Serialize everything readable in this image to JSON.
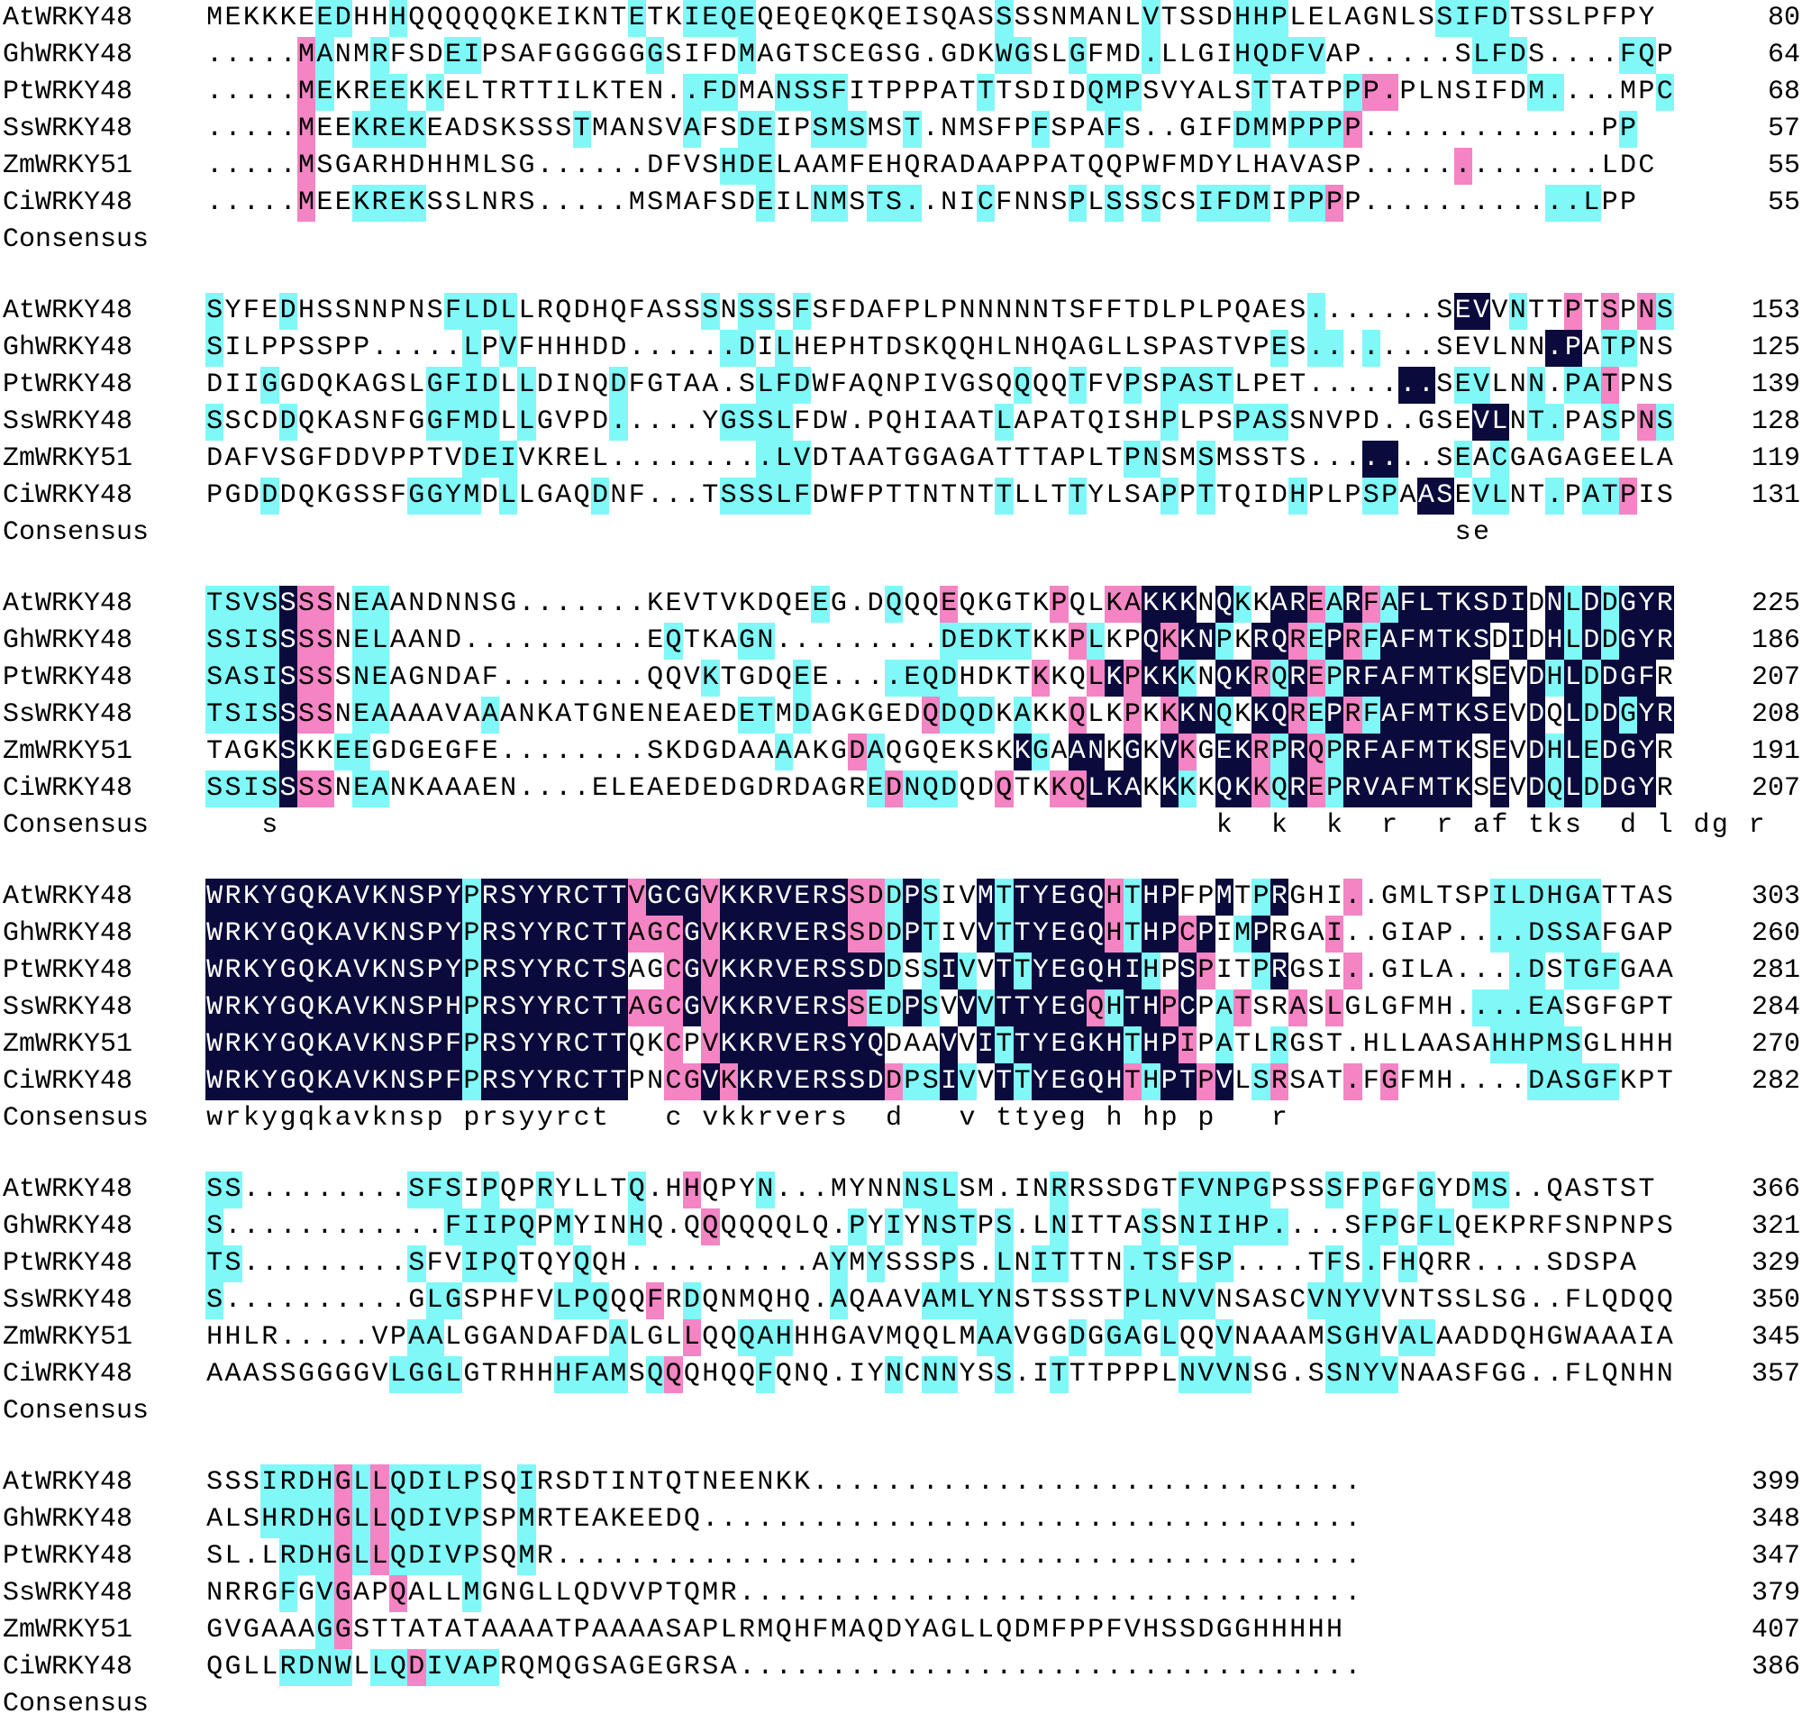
{
  "consensus_label": "Consensus",
  "highlight_colors": {
    "pink": "#f484c4",
    "cyan": "#80f8f8",
    "navy": "#0a0a3c"
  },
  "blocks": [
    {
      "rows": [
        {
          "name": "AtWRKY48",
          "seq": "MEKKKEEDHHHQQQQQQKEIKNTETKIEQEQEQEQKQEISQASSSSNMANLVTSSDHHPLELAGNLSSIFDTSSLPFPY",
          "hl": "......11..1............1..1111.............1.......1....111........1111........1",
          "num": "80"
        },
        {
          "name": "GhWRKY48",
          "seq": ".....MANMRFSDEIPSAFGGGGGGSIFDMAGTSCEGSG.GDKWGSLGFMD.LLGIHQDFVAP.....SLFDS....FQP",
          "hl": ".....21..1...11.........1....1.............11..1...1....11111........111.....11",
          "num": "64"
        },
        {
          "name": "PtWRKY48",
          "seq": ".....MEKREEKKELTRTTILKTEN..FDMANSSFITPPPATTTSDIDQMPSVYALSTTATPPP.PLNSIFDM....MPC",
          "hl": ".....21..11.1.............111..1111.......1.....111......1....122.......11.....1",
          "num": "68"
        },
        {
          "name": "SsWRKY48",
          "seq": ".....MEEKREKEADSKSSSTMANSVAFSDEIPSMSMST.NMSFPFSPAFS..GIFDMMPPPP.............PP",
          "hl": ".....2..1111........1.....1..11..111..1......1...1......11.1112..............11",
          "num": "57"
        },
        {
          "name": "ZmWRKY51",
          "seq": ".....MSGARHDHHMLSG......DFVSHDELAAMFEHQRADAAPPATQQPWFMDYLHAVASP.............LDC",
          "hl": ".....2......................111.....................................2..............",
          "num": "55"
        },
        {
          "name": "CiWRKY48",
          "seq": ".....MEEKREKSSLNRS.....MSMAFSDEILNMSTS..NICFNNSPLSSSCSIFDMIPPPP............LPP",
          "hl": ".....2..1111..................1..11.111...1....1.1.1..1111.112...........111",
          "num": "55"
        }
      ],
      "consensus": ""
    },
    {
      "rows": [
        {
          "name": "AtWRKY48",
          "seq": "SYFEDHSSNNPNSFLDLLRQDHQFASSSNSSSFSFDAFPLPNNNNNTSFFTDLPLPQAES.......SEVVNTTPTSPNS",
          "hl": "1...1........1111..........1.11.1...........................1.......33.1..2.2.212",
          "num": "153"
        },
        {
          "name": "GhWRKY48",
          "seq": "SILPPSSPP.....LPVFHHHDD......DILHEPHTDSKQQHLNHQAGLLSPASTVPES.......SEVLNN.PATPNS",
          "hl": "1.............1.1...........11.1..........................1.11.1.........33.11..1.112",
          "num": "125"
        },
        {
          "name": "PtWRKY48",
          "seq": "DIIGGDQKAGSLGFIDLLDINQDFGTAA.SLFDWFAQNPIVGSQQQQTFVPSPASTLPET.......SEVLNN.PATPNS",
          "hl": "...1........1111.1....1.......111...........1..1..1.1111.........33.11..1.112",
          "num": "139"
        },
        {
          "name": "SsWRKY48",
          "seq": "SSCDDQKASNFGGFMDLLGVPD.....YGSSLFDW.PQHIAATLAPATQISHPLPSPASSNVPD..GSEVLNT.PASPNS",
          "hl": "1...1.......1111.1....1.....1111...........1........1...111..........33.11..1.212",
          "num": "128"
        },
        {
          "name": "ZmWRKY51",
          "seq": "DAFVSGFDDVPPTVDEIVKREL.........LVDTAATGGAGATTTAPLTPNSMSMSSTS.......SEACGAGAGEELA",
          "hl": "..............111.............111.................11..1........33...1.1.....",
          "num": "119"
        },
        {
          "name": "CiWRKY48",
          "seq": "PGDDDQKGSSFGGYMDLLGAQDNF...TSSSLFDWFPTTNTNTTLLTTYLSAPPTTQIDHPLPSPAASEVLNT.PATPIS",
          "hl": "...1.......1111.1....1......11111..........1...1....1.1....1...11.33.11..1.112",
          "num": "131"
        }
      ],
      "consensus": "                                                                    se           "
    },
    {
      "rows": [
        {
          "name": "AtWRKY48",
          "seq": "TSVSSSSNEAANDNNSG.......KEVTVKDQEEG.DQQQEQKGTKPQLKAKKKNQKKAREARFAFLTKSDIDNLDDGYR",
          "hl": "1111322.11.......................1...1..2.....2..22333.31.33213213333333.3131333",
          "num": "225"
        },
        {
          "name": "GhWRKY48",
          "seq": "SSISSSSNELAAND..........EQTKAGN.........DEDKTKKPLKPQKKNPKRQREPRFAFMTKSDIDHLDDGYR",
          "hl": "1111322.11...............1...11.........11111..21..32331.3321321333333.3.3131333",
          "num": "186"
        },
        {
          "name": "PtWRKY48",
          "seq": "SASISSSSNEAGNDAF........QQVKTGDQEE....EQDHDKTKKQLKPKKKNQKRQREPRFAFMTKSEVDHLDDGFR",
          "hl": "1111322.11.................1....1....1111....2..232331.33213213333333.3.3131333",
          "num": "207"
        },
        {
          "name": "SsWRKY48",
          "seq": "TSISSSSNEAAAAVAAANKATGNENEAEDETMDAGKGEDQDQDKAKKQLKPKKKNQKKQREPRFAFMTKSEVDQLDDGYR",
          "hl": "1111322.11.....1.............11.1......2111.1..2..2.2331.33213213333333.3.3131333",
          "num": "208"
        },
        {
          "name": "ZmWRKY51",
          "seq": "TAGKSKKEEGDGEGFE........SKDGDAAAAKGDAQGQEKSKKGAANKGKVKGEKRPRQPRFAFMTKSEVDHLEDGYR",
          "hl": "....3..11......................1...21.......31.33.3.32.33213213333333.3.3131333",
          "num": "191"
        },
        {
          "name": "CiWRKY48",
          "seq": "SSISSSSNEANKAAAEN....ELEAEDEDGDRDAGREDNQDQDQTKKQLKAKKKKQKKQREPRVAFMTKSEVDQLDDGYR",
          "hl": "1111322.11..........................12111..2..22333.31.33213213333333.3.3131333",
          "num": "207"
        }
      ],
      "consensus": "   s                                                   k  k  k  r  r af tks  d l dg r"
    },
    {
      "rows": [
        {
          "name": "AtWRKY48",
          "seq": "WRKYGQKAVKNSPYPRSYYRCTTVGCGVKKRVERSSDDPSIVMTTYEGQHTHPFPMTPRGHI..GMLTSPILDHGATTAS",
          "hl": "3333333333333313333333323332333333322131..31333332133..3.13...2.......111111",
          "num": "303"
        },
        {
          "name": "GhWRKY48",
          "seq": "WRKYGQKAVKNSPYPRSYYRCTTAGCGVKKRVERSSDDPTIVVTTYEGQHTHPCPIMPRGAI..GIAP....DSSAFGAP",
          "hl": "3333333333333313333333322232333333322131..3133333213323.13...2........111111",
          "num": "260"
        },
        {
          "name": "PtWRKY48",
          "seq": "WRKYGQKAVKNSPYPRSYYRCTSAGCGVKKRVERSSDDSSIVVTTYEGQHIHPSPITPRGSI..GILA....DSTGFGAA",
          "hl": "33333333333333133333333..2323333333331.131.313333331.32..13...2........11.111",
          "num": "281"
        },
        {
          "name": "SsWRKY48",
          "seq": "WRKYGQKAVKNSPHPRSYYRCTTAGCGVKKRVERSSEDPSVVVTTYEGQHTHPCPATSRASLGLGFMH....EASGFGPT",
          "hl": "3333333333333313333333322232333333321131.3133333213323.12..2.2.......11111",
          "num": "284"
        },
        {
          "name": "ZmWRKY51",
          "seq": "WRKYGQKAVKNSPFPRSYYRCTTQKCPVKKRVERSYQDAAVVITTYEGKHTHPIPATLRGST.HLLAASAHHPMSGLHHH",
          "hl": "33333333333333133333333..2.2333333333...3.313333331332.1..1...........11111",
          "num": "270"
        },
        {
          "name": "CiWRKY48",
          "seq": "WRKYGQKAVKNSPFPRSYYRCTTPNCGVKKRVERSSDDPSIVVTTYEGQHTHPTPVLSRSAT.FGFMH....DASGFKPT",
          "hl": "33333333333333133333333..22323333333321131.3133333213323.12...2.2.......11111",
          "num": "282"
        }
      ],
      "consensus": "wrkygqkavknsp prsyyrct   c vkkrvers  d   v ttyeg h hp p   r"
    },
    {
      "rows": [
        {
          "name": "AtWRKY48",
          "seq": "SS.........SFSIPQPRYLLTQ.HHQPYN...MYNNNSLSM.INRRSSDGTFVNPGPSSSFPGFGYDMS..QASTST",
          "hl": "11.........111.1..1....1..2...1.......111.....1......11111...1.1..1..11.....",
          "num": "366"
        },
        {
          "name": "GhWRKY48",
          "seq": "S............FIIPQPMYINHQ.QQQQQQLQ.PYIYNSTPS.LNITTASSNIIHP....SFPGFLQEKPRFSNPNPS",
          "hl": "1............11111.1...1...2.......1.1.111.1..1....1.111111....11.11.............",
          "num": "321"
        },
        {
          "name": "PtWRKY48",
          "seq": "TS.........SFVIPQTQYQQH..........AYMYSSSPS.LNITTTN.TSFSP....TFS.FHQRR....SDSPA",
          "hl": "11.........1..111...1.............1.1...1..1.11...111.11.....1.1.1...............",
          "num": "329"
        },
        {
          "name": "SsWRKY48",
          "seq": "S..........GLGSPHFVLPQQQFRDQNMQHQ.AQAAVAMLYNSTSSSTPLNVVNSASCVNYVVNTSSLSG..FLQDQQ",
          "hl": "1...........11.....111..2.1.......1....11111......11111.....1111...........",
          "num": "350"
        },
        {
          "name": "ZmWRKY51",
          "seq": "HHLR.....VPAALGGANDAFDALGLLQQQAHHHGAVMQQLMAAVGGDGGAGLQQVNAAAMSGHVALAADDQHGWAAAIA",
          "hl": "...........11.........1...2..111..........11...1.11.1..1.....111.11......",
          "num": "345"
        },
        {
          "name": "CiWRKY48",
          "seq": "AAASSGGGGVLGGLGTRHHHFAMSQQQHQQFQNQ.IYNCNNYSS.ITTTPPPLNVVNSG.SSNYVNAASFGG..FLQNHN",
          "hl": "..........1111.....1111.12....1......1.11..1..1......1111....1111...........",
          "num": "357"
        }
      ],
      "consensus": ""
    },
    {
      "rows": [
        {
          "name": "AtWRKY48",
          "seq": "SSSIRDHGLLQDILPSQIRSDTINTQTNEENKK..............................",
          "hl": "...111121211111..1..................................",
          "num": "399"
        },
        {
          "name": "GhWRKY48",
          "seq": "ALSHRDHGLLQDIVPSPMRTEAKEEDQ....................................",
          "hl": "...111121211111..1....................................",
          "num": "348"
        },
        {
          "name": "PtWRKY48",
          "seq": "SL.LRDHGLLQDIVPSQMR............................................",
          "hl": "....11121211111..1...................................",
          "num": "347"
        },
        {
          "name": "SsWRKY48",
          "seq": "NRRGFGVGAPQALLMGNGLLQDVVPTQMR..................................",
          "hl": "....1.12..2...1.......................................",
          "num": "379"
        },
        {
          "name": "ZmWRKY51",
          "seq": "GVGAAAGGSTTATATAAAATPAAAASAPLRMQHFMAQDYAGLLQDMFPPFVHSSDGGHHHHH",
          "hl": "......12........................................................",
          "num": "407"
        },
        {
          "name": "CiWRKY48",
          "seq": "QGLLRDNWLLQDIVAPRQMQGSAGEGRSA..................................",
          "hl": "....1111.1121111.........................................",
          "num": "386"
        }
      ],
      "consensus": ""
    }
  ]
}
